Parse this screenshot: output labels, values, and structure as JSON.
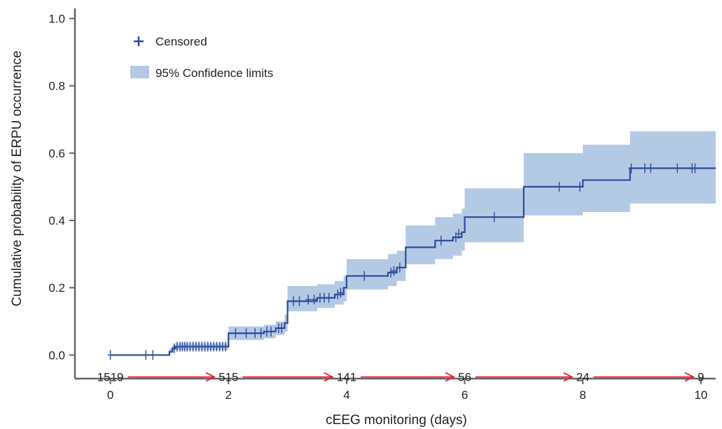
{
  "chart_data": {
    "type": "line",
    "subtype": "kaplan-meier-cumulative-incidence",
    "title": "",
    "xlabel": "cEEG monitoring (days)",
    "ylabel": "Cumulative probability of ERPU occurrence",
    "xlim": [
      -0.6,
      10.25
    ],
    "ylim": [
      -0.07,
      1.03
    ],
    "xticks": [
      0,
      2,
      4,
      6,
      8,
      10
    ],
    "xtick_labels": [
      "0",
      "2",
      "4",
      "6",
      "8",
      "10"
    ],
    "yticks": [
      0.0,
      0.2,
      0.4,
      0.6,
      0.8,
      1.0
    ],
    "ytick_labels": [
      "0.0",
      "0.2",
      "0.4",
      "0.6",
      "0.8",
      "1.0"
    ],
    "grid": false,
    "legend": {
      "placement": "top-left",
      "entries": [
        {
          "label": "Censored",
          "marker": "plus",
          "color": "#2b4a9a"
        },
        {
          "label": "95% Confidence limits",
          "marker": "band",
          "color": "#b4c9e4"
        }
      ]
    },
    "colors": {
      "curve": "#2b4a9a",
      "band": "#b4c9e4",
      "risk_arrow": "#e8212b"
    },
    "series": [
      {
        "step_points": [
          [
            0,
            0.0
          ],
          [
            1.0,
            0.01
          ],
          [
            1.05,
            0.02
          ],
          [
            1.1,
            0.025
          ],
          [
            2.0,
            0.065
          ],
          [
            2.6,
            0.07
          ],
          [
            2.8,
            0.08
          ],
          [
            2.95,
            0.095
          ],
          [
            3.0,
            0.16
          ],
          [
            3.5,
            0.17
          ],
          [
            3.8,
            0.18
          ],
          [
            3.95,
            0.2
          ],
          [
            4.0,
            0.235
          ],
          [
            4.7,
            0.245
          ],
          [
            4.85,
            0.26
          ],
          [
            5.0,
            0.32
          ],
          [
            5.5,
            0.34
          ],
          [
            5.8,
            0.35
          ],
          [
            5.95,
            0.365
          ],
          [
            6.0,
            0.41
          ],
          [
            7.0,
            0.5
          ],
          [
            8.0,
            0.52
          ],
          [
            8.8,
            0.555
          ],
          [
            10.3,
            0.555
          ]
        ],
        "ci_band": [
          [
            0,
            0.0,
            0.0
          ],
          [
            1.0,
            0.005,
            0.02
          ],
          [
            1.05,
            0.012,
            0.03
          ],
          [
            1.1,
            0.015,
            0.035
          ],
          [
            2.0,
            0.045,
            0.085
          ],
          [
            2.6,
            0.05,
            0.09
          ],
          [
            2.8,
            0.06,
            0.1
          ],
          [
            2.95,
            0.07,
            0.12
          ],
          [
            3.0,
            0.13,
            0.205
          ],
          [
            3.5,
            0.14,
            0.21
          ],
          [
            3.8,
            0.15,
            0.22
          ],
          [
            3.95,
            0.16,
            0.235
          ],
          [
            4.0,
            0.195,
            0.285
          ],
          [
            4.7,
            0.205,
            0.3
          ],
          [
            4.85,
            0.22,
            0.31
          ],
          [
            5.0,
            0.27,
            0.385
          ],
          [
            5.5,
            0.285,
            0.41
          ],
          [
            5.8,
            0.295,
            0.42
          ],
          [
            5.95,
            0.31,
            0.435
          ],
          [
            6.0,
            0.335,
            0.495
          ],
          [
            7.0,
            0.415,
            0.6
          ],
          [
            8.0,
            0.425,
            0.625
          ],
          [
            8.8,
            0.45,
            0.665
          ],
          [
            10.3,
            0.45,
            0.665
          ]
        ],
        "censored": [
          [
            0.0,
            0.0
          ],
          [
            0.6,
            0.0
          ],
          [
            0.72,
            0.0
          ],
          [
            1.08,
            0.02
          ],
          [
            1.13,
            0.025
          ],
          [
            1.18,
            0.025
          ],
          [
            1.22,
            0.025
          ],
          [
            1.26,
            0.025
          ],
          [
            1.3,
            0.025
          ],
          [
            1.35,
            0.025
          ],
          [
            1.4,
            0.025
          ],
          [
            1.45,
            0.025
          ],
          [
            1.5,
            0.025
          ],
          [
            1.55,
            0.025
          ],
          [
            1.6,
            0.025
          ],
          [
            1.65,
            0.025
          ],
          [
            1.7,
            0.025
          ],
          [
            1.75,
            0.025
          ],
          [
            1.8,
            0.025
          ],
          [
            1.85,
            0.025
          ],
          [
            1.9,
            0.025
          ],
          [
            1.95,
            0.025
          ],
          [
            2.12,
            0.065
          ],
          [
            2.3,
            0.065
          ],
          [
            2.45,
            0.065
          ],
          [
            2.55,
            0.065
          ],
          [
            2.65,
            0.07
          ],
          [
            2.72,
            0.07
          ],
          [
            2.85,
            0.08
          ],
          [
            2.9,
            0.08
          ],
          [
            3.1,
            0.16
          ],
          [
            3.2,
            0.16
          ],
          [
            3.35,
            0.165
          ],
          [
            3.45,
            0.165
          ],
          [
            3.55,
            0.17
          ],
          [
            3.62,
            0.17
          ],
          [
            3.7,
            0.17
          ],
          [
            3.85,
            0.18
          ],
          [
            3.9,
            0.185
          ],
          [
            4.3,
            0.235
          ],
          [
            4.75,
            0.245
          ],
          [
            4.8,
            0.25
          ],
          [
            4.9,
            0.26
          ],
          [
            5.6,
            0.34
          ],
          [
            5.85,
            0.35
          ],
          [
            5.9,
            0.36
          ],
          [
            6.5,
            0.41
          ],
          [
            7.6,
            0.5
          ],
          [
            7.95,
            0.5
          ],
          [
            8.82,
            0.555
          ],
          [
            9.05,
            0.555
          ],
          [
            9.15,
            0.555
          ],
          [
            9.6,
            0.555
          ],
          [
            9.85,
            0.555
          ],
          [
            9.9,
            0.555
          ]
        ]
      }
    ],
    "number_at_risk": {
      "times": [
        0,
        2,
        4,
        6,
        8,
        10
      ],
      "values": [
        "1519",
        "515",
        "141",
        "56",
        "24",
        "9"
      ],
      "y": -0.065
    }
  }
}
